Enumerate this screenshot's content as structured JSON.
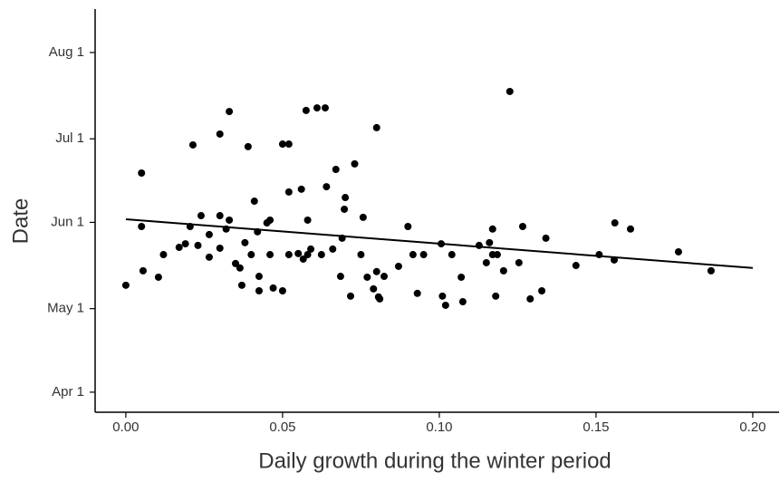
{
  "chart_data": {
    "type": "scatter",
    "x_label": "Daily growth during the winter period",
    "y_label": "Date",
    "color": "#000000",
    "x": [
      0,
      0.005,
      0.005,
      0.0055,
      0.0104,
      0.012,
      0.017,
      0.019,
      0.0205,
      0.0214,
      0.023,
      0.024,
      0.0266,
      0.0266,
      0.03,
      0.03,
      0.03,
      0.032,
      0.033,
      0.033,
      0.035,
      0.0364,
      0.037,
      0.038,
      0.039,
      0.04,
      0.041,
      0.042,
      0.0425,
      0.0425,
      0.045,
      0.046,
      0.046,
      0.047,
      0.05,
      0.05,
      0.052,
      0.052,
      0.052,
      0.055,
      0.056,
      0.0566,
      0.0575,
      0.058,
      0.058,
      0.059,
      0.061,
      0.0624,
      0.0636,
      0.064,
      0.066,
      0.067,
      0.0685,
      0.069,
      0.0697,
      0.07,
      0.0717,
      0.073,
      0.075,
      0.0757,
      0.077,
      0.079,
      0.08,
      0.08,
      0.0806,
      0.081,
      0.0824,
      0.087,
      0.09,
      0.0916,
      0.093,
      0.095,
      0.1006,
      0.101,
      0.102,
      0.104,
      0.107,
      0.1075,
      0.1127,
      0.115,
      0.116,
      0.117,
      0.117,
      0.118,
      0.1185,
      0.1205,
      0.1225,
      0.1254,
      0.1266,
      0.129,
      0.1327,
      0.134,
      0.1436,
      0.151,
      0.1558,
      0.156,
      0.161,
      0.1763,
      0.1867
    ],
    "values": [
      129.4,
      150.5,
      169.7,
      134.6,
      132.3,
      140.4,
      143,
      144.3,
      150.5,
      179.8,
      143.7,
      154.4,
      147.6,
      139.5,
      183.7,
      154.4,
      142.7,
      149.6,
      152.8,
      191.8,
      137.2,
      135.6,
      129.4,
      144.7,
      179.2,
      140.4,
      159.6,
      148.6,
      132.6,
      127.4,
      151.8,
      140.4,
      152.8,
      128.4,
      180.1,
      127.4,
      180.1,
      162.9,
      140.4,
      140.8,
      163.9,
      138.8,
      192.2,
      140.4,
      152.8,
      142.4,
      193.1,
      140.4,
      193.1,
      164.8,
      142.4,
      171,
      132.6,
      146.3,
      156.7,
      160.9,
      125.5,
      173,
      140.4,
      153.8,
      132.3,
      128.1,
      134.3,
      186,
      125.2,
      124.5,
      132.6,
      136.2,
      150.5,
      140.4,
      126.5,
      140.4,
      144.3,
      125.5,
      122.2,
      140.4,
      132.3,
      123.5,
      143.7,
      137.5,
      144.7,
      140.4,
      149.6,
      125.5,
      140.4,
      134.6,
      199,
      137.5,
      150.5,
      124.5,
      127.4,
      146.3,
      136.5,
      140.4,
      138.5,
      151.8,
      149.6,
      141.4,
      134.6
    ],
    "trend": {
      "x": [
        0,
        0.2
      ],
      "values": [
        153.1,
        135.6
      ],
      "color": "#000000"
    },
    "xlim": [
      -0.0098,
      0.2084
    ],
    "xticks": [
      {
        "value": 0,
        "label": "0.00"
      },
      0.05,
      {
        "value": 0.1,
        "label": "0.10"
      },
      0.15,
      {
        "value": 0.2,
        "label": "0.20"
      }
    ],
    "ylim": [
      86.4,
      228.6
    ],
    "yticks": [
      {
        "value": 91,
        "label": "Apr 1"
      },
      {
        "value": 121,
        "label": "May 1"
      },
      {
        "value": 152,
        "label": "Jun 1"
      },
      {
        "value": 182,
        "label": "Jul 1"
      },
      {
        "value": 213,
        "label": "Aug 1"
      }
    ]
  }
}
